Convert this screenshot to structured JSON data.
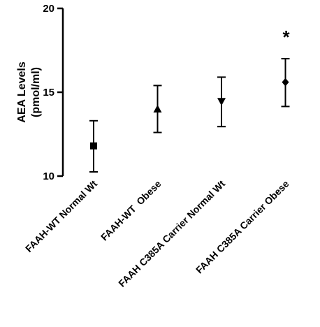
{
  "chart_data": {
    "type": "scatter",
    "categories": [
      "FAAH-WT Normal Wt",
      "FAAH-WT  Obese",
      "FAAH C385A Carrier Normal Wt",
      "FAAH C385A Carrier Obese"
    ],
    "markers": [
      "square",
      "triangle-up",
      "triangle-down",
      "diamond"
    ],
    "values": [
      11.8,
      14.0,
      14.45,
      15.6
    ],
    "error_low": [
      10.25,
      12.6,
      12.95,
      14.15
    ],
    "error_high": [
      13.3,
      15.4,
      15.9,
      17.0
    ],
    "ylabel_line1": "AEA Levels",
    "ylabel_line2": "(pmol/ml)",
    "xlabel": "",
    "ylim": [
      10,
      20
    ],
    "yticks": [
      "10",
      "15",
      "20"
    ],
    "annotation": {
      "text": "*",
      "category_index": 3
    },
    "grid": false,
    "color": "#000000"
  }
}
